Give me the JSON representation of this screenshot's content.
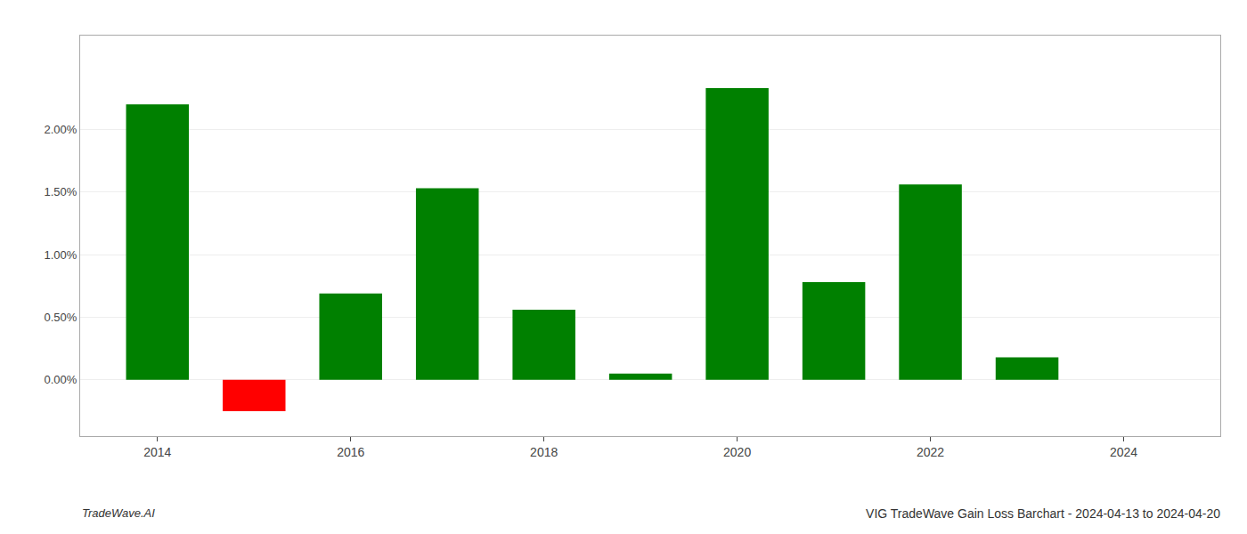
{
  "chart_data": {
    "type": "bar",
    "title": "VIG TradeWave Gain Loss Barchart - 2024-04-13 to 2024-04-20",
    "annotations": [
      "TradeWave.AI"
    ],
    "x": [
      2014,
      2015,
      2016,
      2017,
      2018,
      2019,
      2020,
      2021,
      2022,
      2023
    ],
    "values": [
      2.2,
      -0.25,
      0.69,
      1.53,
      0.56,
      0.05,
      2.33,
      0.78,
      1.56,
      0.18
    ],
    "colors": [
      "#008000",
      "#ff0000",
      "#008000",
      "#008000",
      "#008000",
      "#008000",
      "#008000",
      "#008000",
      "#008000",
      "#008000"
    ],
    "xlim": [
      2013.2,
      2025.0
    ],
    "xticks": [
      2014,
      2016,
      2018,
      2020,
      2022,
      2024
    ],
    "ylim": [
      -0.45,
      2.75
    ],
    "yticks": [
      {
        "value": 0.0,
        "label": "0.00%"
      },
      {
        "value": 0.5,
        "label": "0.50%"
      },
      {
        "value": 1.0,
        "label": "1.00%"
      },
      {
        "value": 1.5,
        "label": "1.50%"
      },
      {
        "value": 2.0,
        "label": "2.00%"
      }
    ],
    "grid": true
  }
}
